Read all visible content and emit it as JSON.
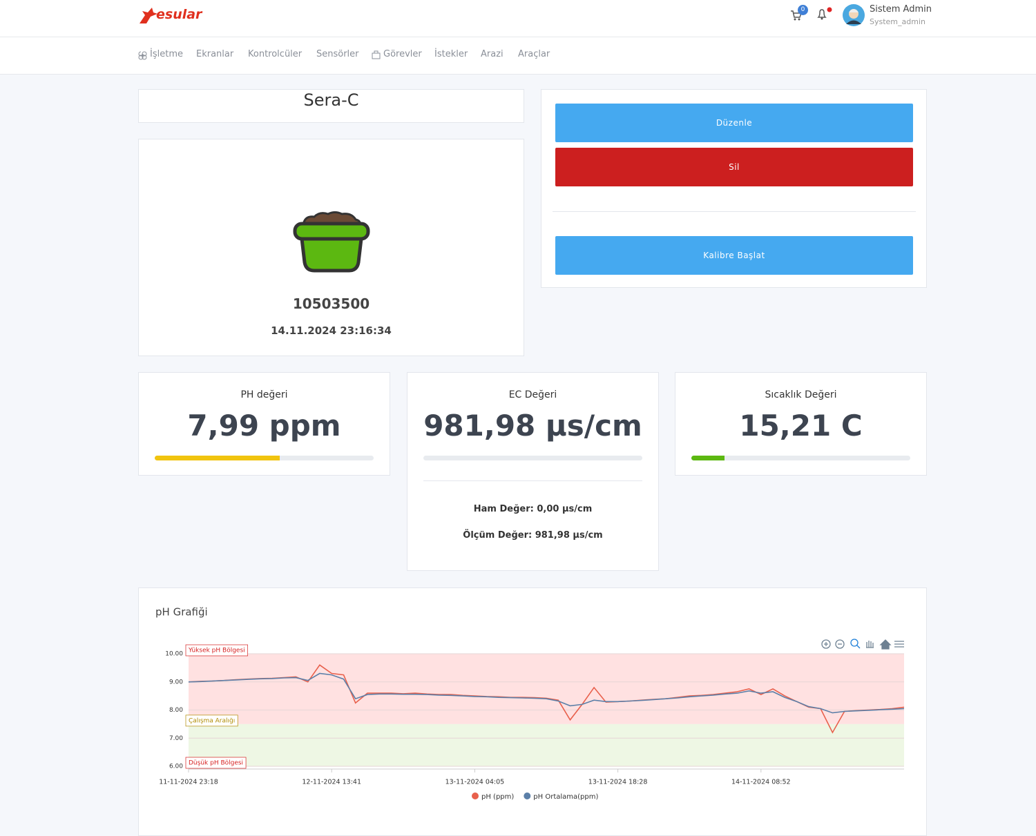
{
  "header": {
    "logo": "esular",
    "cart_count": 0,
    "user_name": "Sistem Admin",
    "user_role": "System_admin"
  },
  "nav": [
    "İşletme",
    "Ekranlar",
    "Kontrolcüler",
    "Sensörler",
    "Görevler",
    "İstekler",
    "Arazi",
    "Araçlar"
  ],
  "device": {
    "name": "Sera-C",
    "id": "10503500",
    "timestamp": "14.11.2024 23:16:34"
  },
  "actions": [
    "Düzenle",
    "Sil",
    "Kalibre Başlat"
  ],
  "stats": [
    {
      "title": "PH değeri",
      "value": "7,99 ppm",
      "progress": 57,
      "color": "#f1c40f"
    },
    {
      "title": "EC Değeri",
      "value": "981,98 µs/cm",
      "progress": 0,
      "color": "#45a9f0",
      "details": [
        "Ham Değer: 0,00 µs/cm",
        "Ölçüm Değer: 981,98 µs/cm"
      ]
    },
    {
      "title": "Sıcaklık Değeri",
      "value": "15,21 C",
      "progress": 15,
      "color": "#5cb811"
    }
  ],
  "chart_data": {
    "type": "line",
    "title": "pH Grafiği",
    "x": [
      "11-11-2024 23:18",
      null,
      null,
      null,
      null,
      null,
      null,
      null,
      null,
      null,
      null,
      null,
      "12-11-2024 13:41",
      null,
      null,
      null,
      null,
      null,
      null,
      null,
      null,
      null,
      null,
      null,
      "13-11-2024 04:05",
      null,
      null,
      null,
      null,
      null,
      null,
      null,
      null,
      null,
      null,
      null,
      "13-11-2024 18:28",
      null,
      null,
      null,
      null,
      null,
      null,
      null,
      null,
      null,
      null,
      null,
      "14-11-2024 08:52",
      null,
      null,
      null,
      null,
      null,
      null,
      null,
      null,
      null,
      null,
      null,
      null
    ],
    "series": [
      {
        "name": "pH (ppm)",
        "color": "#e8604c",
        "values": [
          9.0,
          9.02,
          9.03,
          9.05,
          9.08,
          9.1,
          9.12,
          9.13,
          9.15,
          9.18,
          9.0,
          9.6,
          9.3,
          9.25,
          8.25,
          8.6,
          8.6,
          8.6,
          8.58,
          8.6,
          8.57,
          8.55,
          8.55,
          8.52,
          8.5,
          8.48,
          8.47,
          8.45,
          8.45,
          8.44,
          8.42,
          8.35,
          7.65,
          8.2,
          8.8,
          8.28,
          8.3,
          8.32,
          8.35,
          8.38,
          8.4,
          8.45,
          8.5,
          8.52,
          8.55,
          8.6,
          8.65,
          8.75,
          8.55,
          8.75,
          8.5,
          8.3,
          8.1,
          8.05,
          7.2,
          7.95,
          7.98,
          8.0,
          8.02,
          8.05,
          8.1
        ]
      },
      {
        "name": "pH Ortalama(ppm)",
        "color": "#5b7fa8",
        "values": [
          9.0,
          9.01,
          9.03,
          9.05,
          9.07,
          9.09,
          9.11,
          9.12,
          9.14,
          9.15,
          9.05,
          9.3,
          9.25,
          9.1,
          8.4,
          8.55,
          8.57,
          8.57,
          8.56,
          8.56,
          8.55,
          8.53,
          8.52,
          8.5,
          8.48,
          8.47,
          8.45,
          8.44,
          8.43,
          8.42,
          8.4,
          8.32,
          8.15,
          8.2,
          8.35,
          8.3,
          8.3,
          8.32,
          8.34,
          8.37,
          8.4,
          8.43,
          8.47,
          8.5,
          8.53,
          8.57,
          8.6,
          8.68,
          8.6,
          8.65,
          8.45,
          8.3,
          8.12,
          8.05,
          7.9,
          7.95,
          7.97,
          7.99,
          8.01,
          8.03,
          8.05
        ]
      }
    ],
    "ylim": [
      6,
      10
    ],
    "yticks": [
      {
        "value": 6,
        "label": "6.00"
      },
      {
        "value": 7,
        "label": "7.00"
      },
      {
        "value": 8,
        "label": "8.00"
      },
      {
        "value": 9,
        "label": "9.00"
      },
      {
        "value": 10,
        "label": "10.00"
      }
    ],
    "annotations": [
      {
        "y": 10,
        "y2": 7.5,
        "label": "Yüksek pH Bölgesi",
        "color": "#ffe1e1",
        "label_color": "#d62020"
      },
      {
        "y": 7.5,
        "y2": 6,
        "label": "Çalışma Aralığı",
        "color": "#eef7e4",
        "label_color": "#b08a00"
      },
      {
        "y": 6,
        "label": "Düşük pH Bölgesi",
        "color": "#ffe1e1",
        "label_color": "#d62020"
      }
    ],
    "grid": true,
    "legend": "bottom"
  }
}
